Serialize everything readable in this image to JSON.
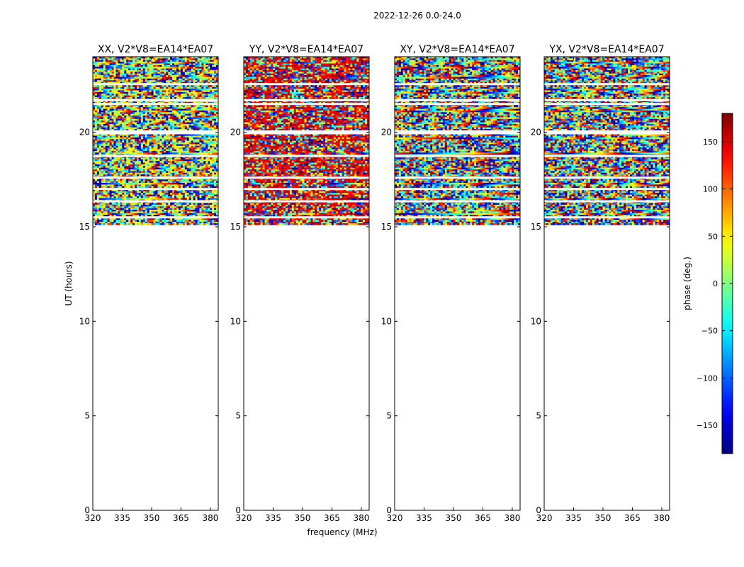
{
  "figure": {
    "suptitle": "2022-12-26 0.0-24.0"
  },
  "chart_data": {
    "type": "heatmap",
    "date_range": "2022-12-26 0.0-24.0",
    "xlabel": "frequency (MHz)",
    "ylabel": "UT (hours)",
    "xlim": [
      320,
      384
    ],
    "ylim": [
      0,
      24
    ],
    "xticks": [
      320,
      335,
      350,
      365,
      380
    ],
    "yticks": [
      0,
      5,
      10,
      15,
      20
    ],
    "data_time_range_hours": [
      15.1,
      24.0
    ],
    "blank_rows_hours": [
      15.5,
      16.35,
      17.0,
      17.6,
      18.75,
      19.95,
      20.05,
      21.5,
      21.7,
      22.55
    ],
    "panels": [
      {
        "title": "XX, V2*V8=EA14*EA07",
        "polarization": "XX",
        "bias": 0.35
      },
      {
        "title": "YY, V2*V8=EA14*EA07",
        "polarization": "YY",
        "bias": 0.8
      },
      {
        "title": "XY, V2*V8=EA14*EA07",
        "polarization": "XY",
        "bias": 0.0
      },
      {
        "title": "YX, V2*V8=EA14*EA07",
        "polarization": "YX",
        "bias": 0.0
      }
    ],
    "colorbar": {
      "label": "phase (deg.)",
      "colormap": "jet",
      "range": [
        -180,
        180
      ],
      "ticks": [
        -150,
        -100,
        -50,
        0,
        50,
        100,
        150
      ],
      "tick_labels": [
        "−150",
        "−100",
        "−50",
        "0",
        "50",
        "100",
        "150"
      ]
    }
  }
}
